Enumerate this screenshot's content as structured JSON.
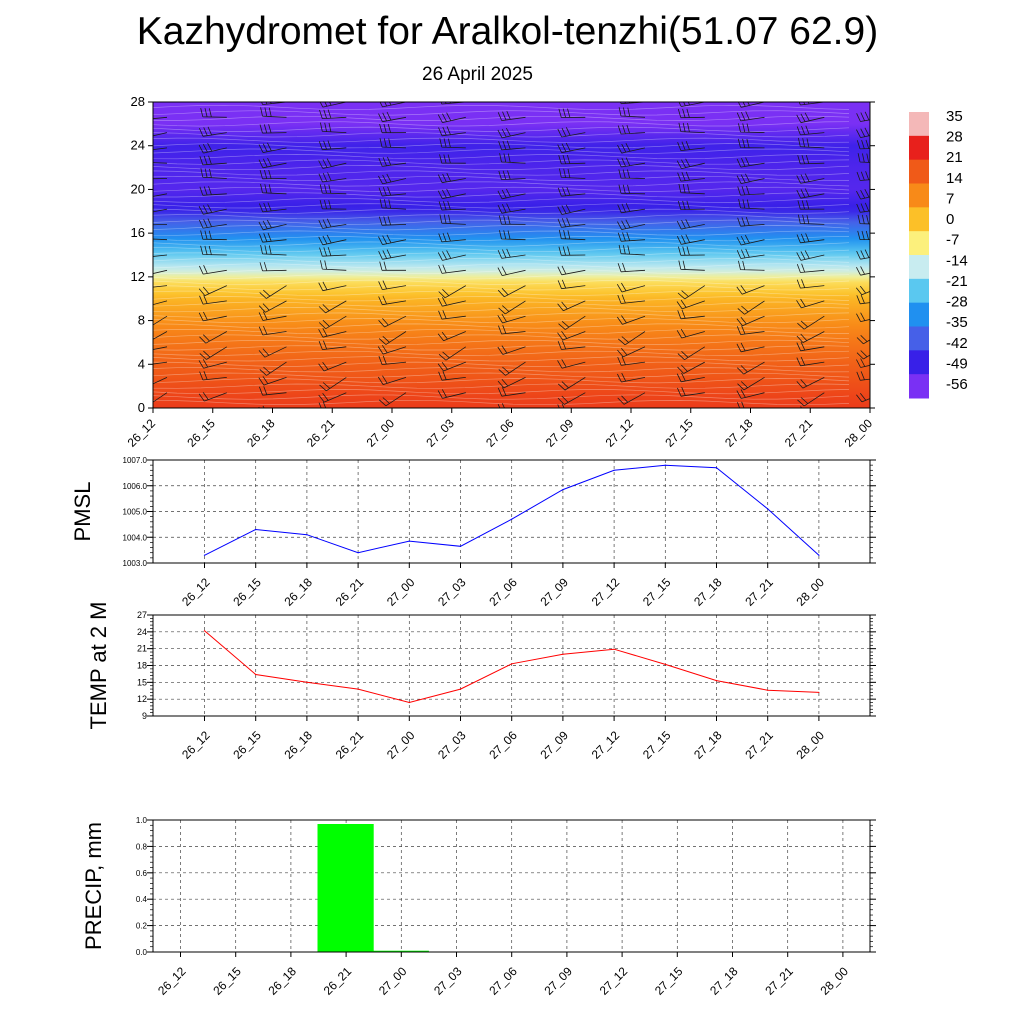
{
  "header": {
    "title": "Kazhydromet for Aralkol-tenzhi(51.07 62.9)",
    "date": "26 April 2025"
  },
  "time_labels": [
    "26_12",
    "26_15",
    "26_18",
    "26_21",
    "27_00",
    "27_03",
    "27_06",
    "27_09",
    "27_12",
    "27_15",
    "27_18",
    "27_21",
    "28_00"
  ],
  "chart_data": [
    {
      "type": "heatmap",
      "title": "",
      "xlabel": "",
      "ylabel": "",
      "x": [
        "26_12",
        "26_15",
        "26_18",
        "26_21",
        "27_00",
        "27_03",
        "27_06",
        "27_09",
        "27_12",
        "27_15",
        "27_18",
        "27_21",
        "28_00"
      ],
      "ylim": [
        0,
        28
      ],
      "yticks": [
        0,
        4,
        8,
        12,
        16,
        20,
        24,
        28
      ],
      "colorbar": {
        "labels": [
          "35",
          "28",
          "21",
          "14",
          "7",
          "0",
          "-7",
          "-14",
          "-21",
          "-28",
          "-35",
          "-42",
          "-49",
          "-56"
        ],
        "colors": [
          "#f4b8b8",
          "#e8201c",
          "#f05a18",
          "#f88a18",
          "#fcc028",
          "#fcf07c",
          "#c8ecf0",
          "#5ac8f0",
          "#2090f0",
          "#4660e8",
          "#3820e8",
          "#7a30f4"
        ],
        "range": [
          -60,
          38
        ]
      },
      "temperature_profile": {
        "heights": [
          0,
          2,
          4,
          6,
          8,
          10,
          11.5,
          12,
          12.5,
          13.5,
          15,
          16,
          17,
          18,
          20,
          22,
          24,
          26,
          28
        ],
        "values": [
          25,
          22,
          19,
          15,
          10,
          4,
          -3,
          -9,
          -14,
          -20,
          -30,
          -36,
          -42,
          -50,
          -55,
          -54,
          -52,
          -60,
          -62
        ]
      },
      "wind_barbs": "shown"
    },
    {
      "type": "line",
      "ylabel": "PMSL",
      "categories": [
        "26_12",
        "26_15",
        "26_18",
        "26_21",
        "27_00",
        "27_03",
        "27_06",
        "27_09",
        "27_12",
        "27_15",
        "27_18",
        "27_21",
        "28_00"
      ],
      "values": [
        1003.3,
        1004.3,
        1004.1,
        1003.4,
        1003.85,
        1003.65,
        1004.7,
        1005.85,
        1006.6,
        1006.8,
        1006.7,
        1005.1,
        1003.3
      ],
      "ylim": [
        1003.0,
        1007.0
      ],
      "ytick_labels": [
        "1003.0",
        "1004.0",
        "1005.0",
        "1006.0",
        "1007.0"
      ],
      "color": "#0000ff",
      "grid": true
    },
    {
      "type": "line",
      "ylabel": "TEMP at 2 M",
      "categories": [
        "26_12",
        "26_15",
        "26_18",
        "26_21",
        "27_00",
        "27_03",
        "27_06",
        "27_09",
        "27_12",
        "27_15",
        "27_18",
        "27_21",
        "28_00"
      ],
      "values": [
        24.2,
        16.4,
        15.0,
        13.8,
        11.4,
        13.8,
        18.3,
        20.0,
        20.9,
        18.2,
        15.3,
        13.6,
        13.2
      ],
      "ylim": [
        9,
        27
      ],
      "ytick_labels": [
        "9",
        "12",
        "15",
        "18",
        "21",
        "24",
        "27"
      ],
      "color": "#ff0000",
      "grid": true
    },
    {
      "type": "bar",
      "ylabel": "PRECIP, mm",
      "categories": [
        "26_12",
        "26_15",
        "26_18",
        "26_21",
        "27_00",
        "27_03",
        "27_06",
        "27_09",
        "27_12",
        "27_15",
        "27_18",
        "27_21",
        "28_00"
      ],
      "values": [
        0,
        0,
        0,
        0.97,
        0.01,
        0,
        0,
        0,
        0,
        0,
        0,
        0,
        0
      ],
      "ylim": [
        0,
        1.0
      ],
      "ytick_labels": [
        "0.0",
        "0.2",
        "0.4",
        "0.6",
        "0.8",
        "1.0"
      ],
      "color": "#00ff00",
      "grid": true
    }
  ]
}
